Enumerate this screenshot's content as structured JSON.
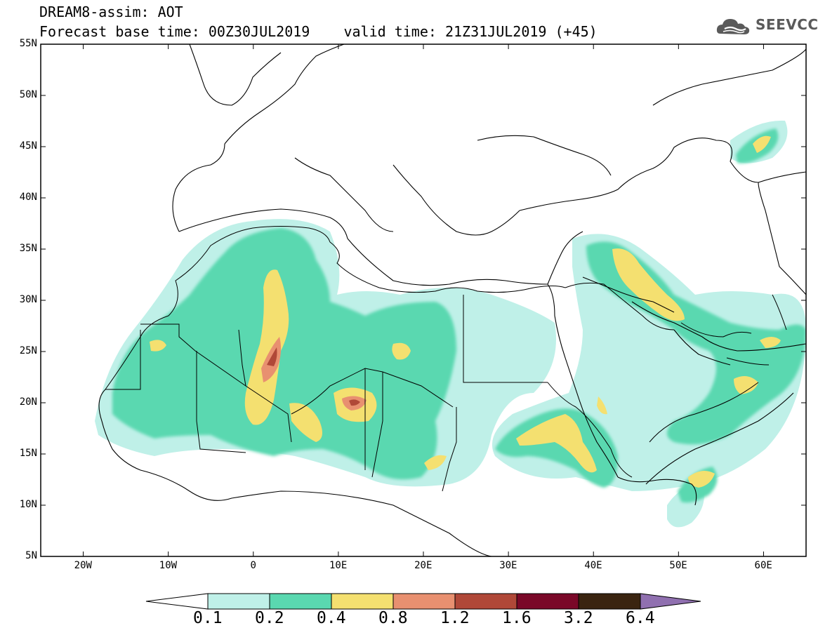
{
  "header": {
    "line1": "DREAM8-assim: AOT",
    "line2": "Forecast base time: 00Z30JUL2019    valid time: 21Z31JUL2019 (+45)"
  },
  "logo": {
    "text": "SEEVCCC",
    "icon": "cloud-icon"
  },
  "map": {
    "lon_range": [
      -25,
      65
    ],
    "lat_range": [
      5,
      55
    ],
    "y_ticks": [
      "55N",
      "50N",
      "45N",
      "40N",
      "35N",
      "30N",
      "25N",
      "20N",
      "15N",
      "10N",
      "5N"
    ],
    "x_ticks": [
      "20W",
      "10W",
      "0",
      "10E",
      "20E",
      "30E",
      "40E",
      "50E",
      "60E"
    ]
  },
  "colorbar": {
    "levels": [
      "0.1",
      "0.2",
      "0.4",
      "0.8",
      "1.2",
      "1.6",
      "3.2",
      "6.4"
    ],
    "colors": {
      "under": "#ffffff",
      "c1": "#bff0e8",
      "c2": "#5ad8b0",
      "c3": "#f4e070",
      "c4": "#e89070",
      "c5": "#b04838",
      "c6": "#7a0828",
      "c7": "#3a2410",
      "over": "#9070b0"
    }
  }
}
